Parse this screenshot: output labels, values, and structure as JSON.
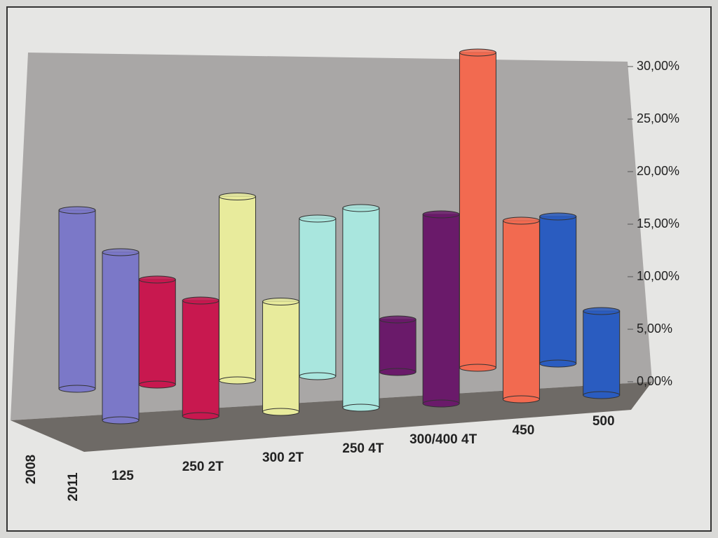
{
  "chart_data": {
    "type": "bar3d",
    "categories": [
      "125",
      "250 2T",
      "300 2T",
      "250 4T",
      "300/400 4T",
      "450",
      "500"
    ],
    "colors": [
      "#7b78c8",
      "#c8184f",
      "#e8eb9c",
      "#a9e6de",
      "#6a1a6a",
      "#f26a50",
      "#2a5cc0"
    ],
    "series": [
      {
        "name": "2008",
        "values": [
          17,
          10,
          17.5,
          15,
          5,
          30,
          14
        ]
      },
      {
        "name": "2011",
        "values": [
          16,
          11,
          10.5,
          19,
          18,
          17,
          8
        ]
      }
    ],
    "ylim": [
      0,
      30
    ],
    "yticks": [
      {
        "value": 0,
        "label": "0,00%"
      },
      {
        "value": 5,
        "label": "5,00%"
      },
      {
        "value": 10,
        "label": "10,00%"
      },
      {
        "value": 15,
        "label": "15,00%"
      },
      {
        "value": 20,
        "label": "20,00%"
      },
      {
        "value": 25,
        "label": "25,00%"
      },
      {
        "value": 30,
        "label": "30,00%"
      }
    ],
    "grid": false
  }
}
